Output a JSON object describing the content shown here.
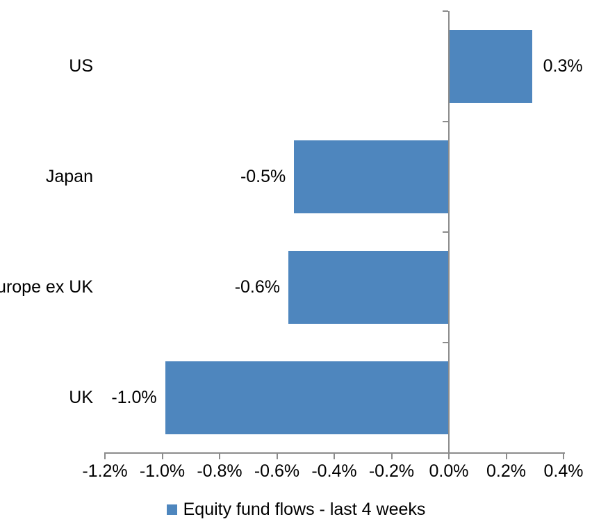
{
  "chart_data": {
    "type": "bar",
    "orientation": "horizontal",
    "title": "",
    "categories": [
      "US",
      "Japan",
      "Europe ex UK",
      "UK"
    ],
    "series": [
      {
        "name": "Equity fund flows - last 4 weeks",
        "values": [
          0.29,
          -0.54,
          -0.56,
          -0.99
        ],
        "labels": [
          "0.3%",
          "-0.5%",
          "-0.6%",
          "-1.0%"
        ]
      }
    ],
    "x_axis": {
      "min": -1.2,
      "max": 0.4,
      "unit": "%",
      "ticks": [
        -1.2,
        -1.0,
        -0.8,
        -0.6,
        -0.4,
        -0.2,
        0.0,
        0.2,
        0.4
      ],
      "tick_labels": [
        "-1.2%",
        "-1.0%",
        "-0.8%",
        "-0.6%",
        "-0.4%",
        "-0.2%",
        "0.0%",
        "0.2%",
        "0.4%"
      ]
    },
    "legend": {
      "position": "bottom",
      "entries": [
        "Equity fund flows - last 4 weeks"
      ]
    },
    "grid": false,
    "colors": {
      "bar": "#4E86BE",
      "axis": "#8C8C8C",
      "text": "#000000",
      "background": "#FFFFFF"
    }
  }
}
